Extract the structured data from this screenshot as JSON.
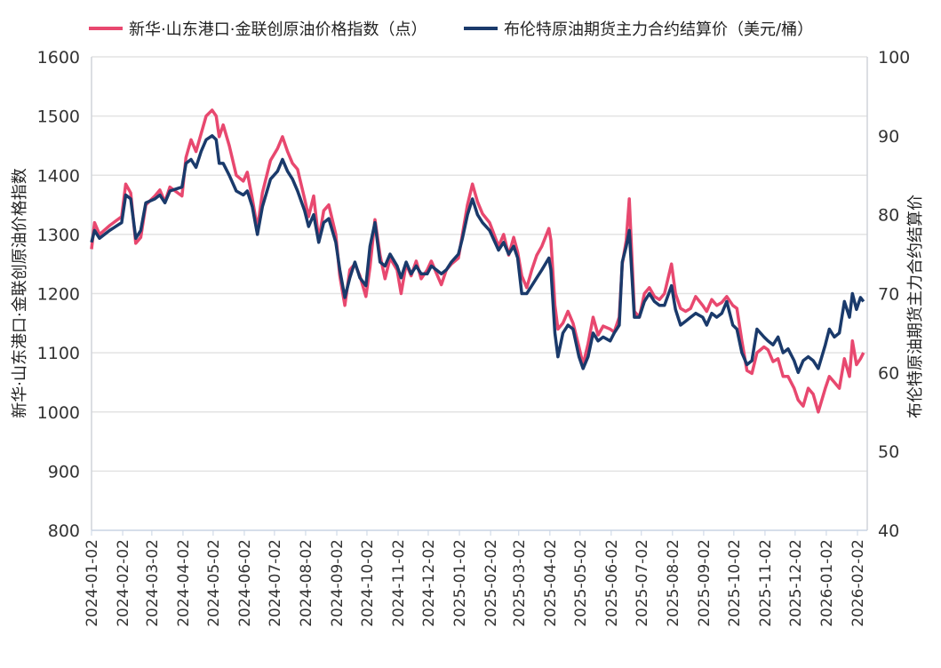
{
  "chart_data": {
    "type": "line",
    "legend_placement": "top",
    "grid": true,
    "ylabel_left": "新华·山东港口·金联创原油价格指数",
    "ylabel_right": "布伦特原油期货主力合约结算价",
    "ylim_left": [
      800,
      1600
    ],
    "ylim_right": [
      40,
      100
    ],
    "yticks_left": [
      "800",
      "900",
      "1000",
      "1100",
      "1200",
      "1300",
      "1400",
      "1500",
      "1600"
    ],
    "yticks_right": [
      "40",
      "50",
      "60",
      "70",
      "80",
      "90",
      "100"
    ],
    "xticks": [
      "2024-01-02",
      "2024-02-02",
      "2024-03-02",
      "2024-04-02",
      "2024-05-02",
      "2024-06-02",
      "2024-07-02",
      "2024-08-02",
      "2024-09-02",
      "2024-10-02",
      "2024-11-02",
      "2024-12-02",
      "2025-01-02",
      "2025-02-02",
      "2025-03-02",
      "2025-04-02",
      "2025-05-02",
      "2025-06-02",
      "2025-07-02",
      "2025-08-02",
      "2025-09-02",
      "2025-10-02",
      "2025-11-02",
      "2025-12-02",
      "2026-01-02",
      "2026-02-02"
    ],
    "series": [
      {
        "name": "新华·山东港口·金联创原油价格指数（点）",
        "axis": "left",
        "color": "#e8486f"
      },
      {
        "name": "布伦特原油期货主力合约结算价（美元/桶）",
        "axis": "right",
        "color": "#1a3a6b"
      }
    ],
    "points": [
      [
        "2024-01-02",
        1275,
        76.5
      ],
      [
        "2024-01-05",
        1320,
        78
      ],
      [
        "2024-01-10",
        1300,
        77
      ],
      [
        "2024-01-20",
        1315,
        78
      ],
      [
        "2024-02-01",
        1330,
        79
      ],
      [
        "2024-02-05",
        1385,
        82.5
      ],
      [
        "2024-02-10",
        1370,
        82
      ],
      [
        "2024-02-15",
        1285,
        77
      ],
      [
        "2024-02-20",
        1295,
        78
      ],
      [
        "2024-02-25",
        1350,
        81.5
      ],
      [
        "2024-03-05",
        1365,
        82
      ],
      [
        "2024-03-10",
        1375,
        82.5
      ],
      [
        "2024-03-15",
        1355,
        81.5
      ],
      [
        "2024-03-20",
        1380,
        83
      ],
      [
        "2024-04-01",
        1365,
        83.5
      ],
      [
        "2024-04-05",
        1430,
        86.5
      ],
      [
        "2024-04-10",
        1460,
        87
      ],
      [
        "2024-04-15",
        1440,
        86
      ],
      [
        "2024-04-20",
        1470,
        88
      ],
      [
        "2024-04-25",
        1500,
        89.5
      ],
      [
        "2024-05-01",
        1510,
        90
      ],
      [
        "2024-05-05",
        1500,
        89.5
      ],
      [
        "2024-05-08",
        1465,
        86.5
      ],
      [
        "2024-05-12",
        1485,
        86.5
      ],
      [
        "2024-05-18",
        1450,
        85
      ],
      [
        "2024-05-25",
        1400,
        83
      ],
      [
        "2024-06-01",
        1390,
        82.5
      ],
      [
        "2024-06-05",
        1405,
        83
      ],
      [
        "2024-06-10",
        1360,
        81
      ],
      [
        "2024-06-15",
        1310,
        77.5
      ],
      [
        "2024-06-20",
        1370,
        81
      ],
      [
        "2024-06-28",
        1425,
        84.5
      ],
      [
        "2024-07-05",
        1445,
        85.5
      ],
      [
        "2024-07-10",
        1465,
        87
      ],
      [
        "2024-07-15",
        1440,
        85.5
      ],
      [
        "2024-07-20",
        1420,
        84.5
      ],
      [
        "2024-07-25",
        1410,
        83
      ],
      [
        "2024-08-01",
        1360,
        80.5
      ],
      [
        "2024-08-05",
        1330,
        78.5
      ],
      [
        "2024-08-10",
        1365,
        80
      ],
      [
        "2024-08-15",
        1290,
        76.5
      ],
      [
        "2024-08-20",
        1340,
        79
      ],
      [
        "2024-08-25",
        1350,
        79.5
      ],
      [
        "2024-09-01",
        1300,
        76.5
      ],
      [
        "2024-09-05",
        1230,
        73
      ],
      [
        "2024-09-10",
        1180,
        69.5
      ],
      [
        "2024-09-15",
        1240,
        72
      ],
      [
        "2024-09-20",
        1250,
        74
      ],
      [
        "2024-09-25",
        1230,
        72
      ],
      [
        "2024-10-01",
        1195,
        71
      ],
      [
        "2024-10-05",
        1245,
        76
      ],
      [
        "2024-10-10",
        1325,
        79
      ],
      [
        "2024-10-15",
        1265,
        74
      ],
      [
        "2024-10-20",
        1225,
        73.5
      ],
      [
        "2024-10-25",
        1260,
        75
      ],
      [
        "2024-11-01",
        1240,
        73.5
      ],
      [
        "2024-11-05",
        1200,
        72
      ],
      [
        "2024-11-10",
        1250,
        74
      ],
      [
        "2024-11-15",
        1230,
        72.5
      ],
      [
        "2024-11-20",
        1255,
        73.5
      ],
      [
        "2024-11-25",
        1225,
        72.5
      ],
      [
        "2024-12-01",
        1240,
        72.5
      ],
      [
        "2024-12-05",
        1255,
        73.5
      ],
      [
        "2024-12-10",
        1235,
        73
      ],
      [
        "2024-12-15",
        1215,
        72.5
      ],
      [
        "2024-12-20",
        1240,
        73
      ],
      [
        "2024-12-25",
        1250,
        74
      ],
      [
        "2025-01-01",
        1260,
        75
      ],
      [
        "2025-01-05",
        1300,
        77
      ],
      [
        "2025-01-10",
        1350,
        80
      ],
      [
        "2025-01-15",
        1385,
        82
      ],
      [
        "2025-01-20",
        1355,
        80
      ],
      [
        "2025-01-25",
        1335,
        79
      ],
      [
        "2025-02-01",
        1320,
        78
      ],
      [
        "2025-02-10",
        1280,
        75.5
      ],
      [
        "2025-02-15",
        1300,
        76.5
      ],
      [
        "2025-02-20",
        1265,
        75
      ],
      [
        "2025-02-25",
        1295,
        76
      ],
      [
        "2025-03-01",
        1270,
        74.5
      ],
      [
        "2025-03-05",
        1230,
        70
      ],
      [
        "2025-03-10",
        1210,
        70
      ],
      [
        "2025-03-15",
        1240,
        71
      ],
      [
        "2025-03-20",
        1265,
        72
      ],
      [
        "2025-03-25",
        1280,
        73
      ],
      [
        "2025-04-01",
        1310,
        74.5
      ],
      [
        "2025-04-03",
        1290,
        73
      ],
      [
        "2025-04-07",
        1180,
        65
      ],
      [
        "2025-04-10",
        1140,
        62
      ],
      [
        "2025-04-15",
        1150,
        65
      ],
      [
        "2025-04-20",
        1170,
        66
      ],
      [
        "2025-04-25",
        1150,
        65.5
      ],
      [
        "2025-05-01",
        1110,
        62
      ],
      [
        "2025-05-05",
        1080,
        60.5
      ],
      [
        "2025-05-10",
        1115,
        62
      ],
      [
        "2025-05-15",
        1160,
        65
      ],
      [
        "2025-05-20",
        1130,
        64
      ],
      [
        "2025-05-25",
        1145,
        64.5
      ],
      [
        "2025-06-01",
        1140,
        64
      ],
      [
        "2025-06-05",
        1135,
        65
      ],
      [
        "2025-06-10",
        1160,
        66
      ],
      [
        "2025-06-13",
        1250,
        74
      ],
      [
        "2025-06-17",
        1290,
        76
      ],
      [
        "2025-06-20",
        1360,
        78
      ],
      [
        "2025-06-25",
        1170,
        67
      ],
      [
        "2025-06-30",
        1160,
        67
      ],
      [
        "2025-07-05",
        1200,
        69
      ],
      [
        "2025-07-10",
        1210,
        70
      ],
      [
        "2025-07-15",
        1195,
        69
      ],
      [
        "2025-07-20",
        1190,
        68.5
      ],
      [
        "2025-07-25",
        1200,
        68.5
      ],
      [
        "2025-08-01",
        1250,
        71
      ],
      [
        "2025-08-05",
        1200,
        68
      ],
      [
        "2025-08-10",
        1175,
        66
      ],
      [
        "2025-08-15",
        1170,
        66.5
      ],
      [
        "2025-08-20",
        1175,
        67
      ],
      [
        "2025-08-25",
        1195,
        67.5
      ],
      [
        "2025-09-01",
        1180,
        67
      ],
      [
        "2025-09-05",
        1170,
        66
      ],
      [
        "2025-09-10",
        1190,
        67.5
      ],
      [
        "2025-09-15",
        1180,
        67
      ],
      [
        "2025-09-20",
        1185,
        67.5
      ],
      [
        "2025-09-25",
        1195,
        69
      ],
      [
        "2025-10-01",
        1180,
        66
      ],
      [
        "2025-10-05",
        1175,
        65.5
      ],
      [
        "2025-10-10",
        1120,
        62.5
      ],
      [
        "2025-10-15",
        1070,
        61
      ],
      [
        "2025-10-20",
        1065,
        61.5
      ],
      [
        "2025-10-25",
        1100,
        65.5
      ],
      [
        "2025-11-01",
        1110,
        64.5
      ],
      [
        "2025-11-05",
        1105,
        64
      ],
      [
        "2025-11-10",
        1085,
        63.5
      ],
      [
        "2025-11-15",
        1090,
        64.5
      ],
      [
        "2025-11-20",
        1060,
        62.5
      ],
      [
        "2025-11-25",
        1060,
        63
      ],
      [
        "2025-12-01",
        1040,
        61.5
      ],
      [
        "2025-12-05",
        1020,
        60
      ],
      [
        "2025-12-10",
        1010,
        61.5
      ],
      [
        "2025-12-15",
        1040,
        62
      ],
      [
        "2025-12-20",
        1030,
        61.5
      ],
      [
        "2025-12-25",
        1000,
        60.5
      ],
      [
        "2026-01-01",
        1040,
        63.5
      ],
      [
        "2026-01-05",
        1060,
        65.5
      ],
      [
        "2026-01-10",
        1050,
        64.5
      ],
      [
        "2026-01-15",
        1040,
        65
      ],
      [
        "2026-01-20",
        1090,
        69
      ],
      [
        "2026-01-25",
        1060,
        67
      ],
      [
        "2026-01-28",
        1120,
        70
      ],
      [
        "2026-02-01",
        1080,
        68
      ],
      [
        "2026-02-05",
        1090,
        69.5
      ],
      [
        "2026-02-08",
        1100,
        69
      ]
    ]
  }
}
